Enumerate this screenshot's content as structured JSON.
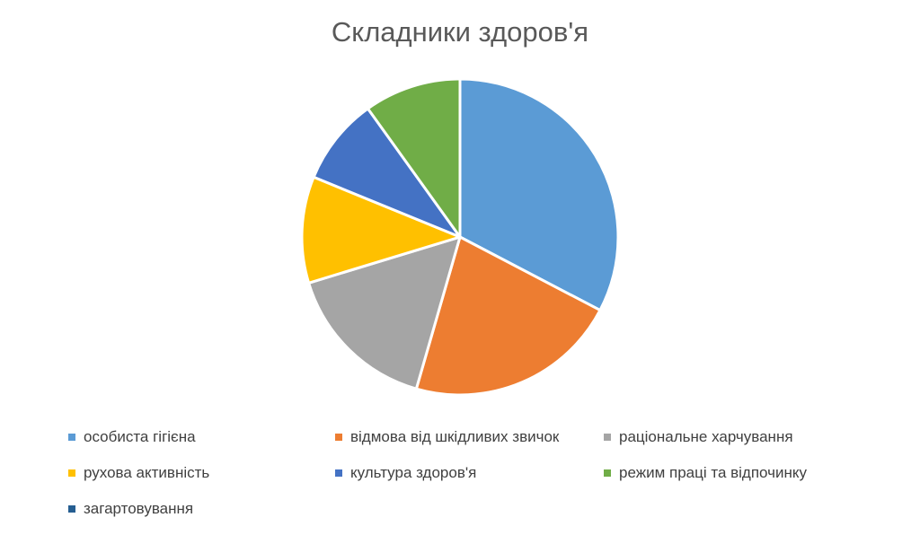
{
  "chart_data": {
    "type": "pie",
    "title": "Складники здоров'я",
    "categories": [
      "особиста гігієна",
      "відмова від шкідливих звичок",
      "раціональне харчування",
      "рухова активність",
      "культура здоров'я",
      "режим праці та відпочинку",
      "загартовування"
    ],
    "values": [
      33,
      22,
      16,
      11,
      9,
      10,
      0
    ],
    "colors": [
      "#5B9BD5",
      "#ED7D31",
      "#A5A5A5",
      "#FFC000",
      "#4472C4",
      "#70AD47",
      "#255E91"
    ],
    "legend_position": "bottom"
  }
}
